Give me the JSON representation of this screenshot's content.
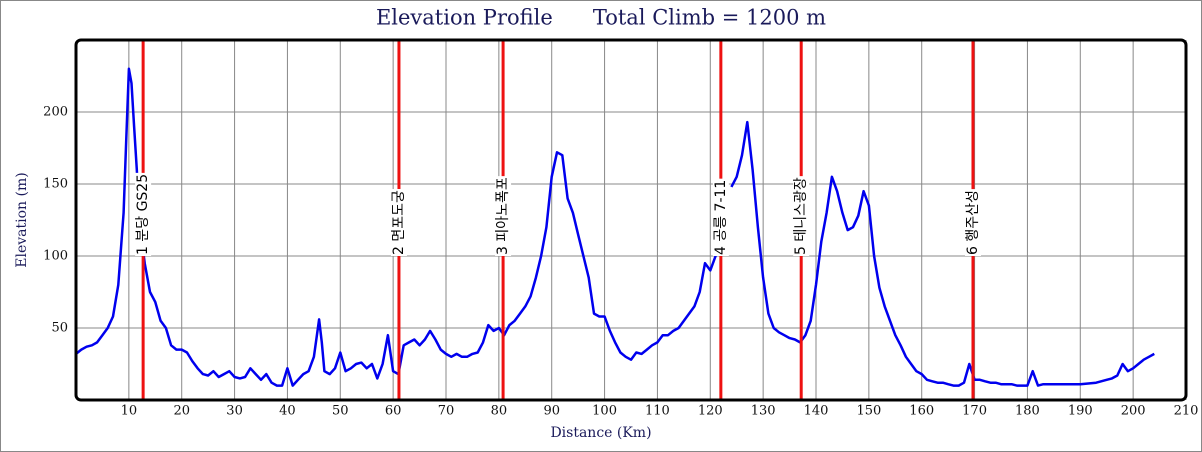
{
  "chart_data": {
    "type": "line",
    "title": "Elevation Profile      Total Climb = 1200 m",
    "x_label": "Distance (Km)",
    "y_label": "Elevation (m)",
    "xlim": [
      0,
      210
    ],
    "ylim": [
      0,
      250
    ],
    "xticks": [
      10,
      20,
      30,
      40,
      50,
      60,
      70,
      80,
      90,
      100,
      110,
      120,
      130,
      140,
      150,
      160,
      170,
      180,
      190,
      200,
      210
    ],
    "yticks": [
      50,
      100,
      150,
      200
    ],
    "grid": true,
    "x": [
      0,
      1,
      2,
      3,
      4,
      5,
      6,
      7,
      8,
      9,
      9.5,
      10,
      10.5,
      11,
      11.5,
      12,
      13,
      14,
      15,
      16,
      17,
      18,
      19,
      20,
      21,
      22,
      23,
      24,
      25,
      26,
      27,
      28,
      29,
      30,
      31,
      32,
      33,
      34,
      35,
      36,
      37,
      38,
      39,
      40,
      41,
      42,
      43,
      44,
      45,
      46,
      46.5,
      47,
      48,
      49,
      50,
      51,
      52,
      53,
      54,
      55,
      56,
      57,
      58,
      59,
      60,
      61,
      62,
      63,
      64,
      65,
      66,
      67,
      68,
      69,
      70,
      71,
      72,
      73,
      74,
      75,
      76,
      77,
      78,
      79,
      80,
      81,
      82,
      83,
      84,
      85,
      86,
      87,
      88,
      89,
      90,
      91,
      92,
      93,
      94,
      95,
      96,
      97,
      98,
      99,
      100,
      101,
      102,
      103,
      104,
      105,
      106,
      107,
      108,
      109,
      110,
      111,
      112,
      113,
      114,
      115,
      116,
      117,
      118,
      119,
      120,
      121,
      122,
      123,
      124,
      125,
      126,
      127,
      128,
      129,
      130,
      131,
      132,
      133,
      134,
      135,
      136,
      137,
      138,
      139,
      140,
      141,
      142,
      143,
      144,
      145,
      146,
      147,
      148,
      149,
      150,
      151,
      152,
      153,
      154,
      155,
      156,
      157,
      158,
      159,
      160,
      161,
      162,
      163,
      164,
      165,
      166,
      167,
      168,
      169,
      170,
      171,
      172,
      173,
      174,
      175,
      176,
      177,
      178,
      179,
      180,
      181,
      182,
      183,
      185,
      188,
      190,
      193,
      195,
      196,
      197,
      198,
      199,
      200,
      201,
      202,
      203,
      204
    ],
    "series": [
      {
        "name": "Elevation",
        "color": "#0000ee",
        "values": [
          32,
          35,
          37,
          38,
          40,
          45,
          50,
          58,
          80,
          130,
          180,
          230,
          220,
          190,
          160,
          125,
          95,
          75,
          68,
          55,
          50,
          38,
          35,
          35,
          33,
          27,
          22,
          18,
          17,
          20,
          16,
          18,
          20,
          16,
          15,
          16,
          22,
          18,
          14,
          18,
          12,
          10,
          10,
          22,
          10,
          14,
          18,
          20,
          30,
          56,
          40,
          20,
          18,
          22,
          33,
          20,
          22,
          25,
          26,
          22,
          25,
          15,
          25,
          45,
          20,
          18,
          38,
          40,
          42,
          38,
          42,
          48,
          42,
          35,
          32,
          30,
          32,
          30,
          30,
          32,
          33,
          40,
          52,
          48,
          50,
          45,
          52,
          55,
          60,
          65,
          72,
          85,
          100,
          120,
          155,
          172,
          170,
          140,
          130,
          115,
          100,
          85,
          60,
          58,
          58,
          48,
          40,
          33,
          30,
          28,
          33,
          32,
          35,
          38,
          40,
          45,
          45,
          48,
          50,
          55,
          60,
          65,
          75,
          95,
          90,
          100,
          105,
          null,
          148,
          155,
          170,
          193,
          160,
          120,
          85,
          60,
          50,
          47,
          45,
          43,
          42,
          40,
          45,
          55,
          80,
          110,
          130,
          155,
          145,
          130,
          118,
          120,
          128,
          145,
          135,
          100,
          78,
          65,
          55,
          45,
          38,
          30,
          25,
          20,
          18,
          14,
          13,
          12,
          12,
          11,
          10,
          10,
          12,
          25,
          14,
          14,
          13,
          12,
          12,
          11,
          11,
          11,
          10,
          10,
          10,
          20,
          10,
          11,
          11,
          11,
          11,
          12,
          14,
          15,
          17,
          25,
          20,
          22,
          25,
          28,
          30,
          32
        ]
      }
    ],
    "annotations": [
      {
        "x": 12.7,
        "label": "1 분당 GS25"
      },
      {
        "x": 61.1,
        "label": "2 면포도궁"
      },
      {
        "x": 80.8,
        "label": "3 피아노폭포"
      },
      {
        "x": 122,
        "label": "4 공릉 7-11"
      },
      {
        "x": 137.2,
        "label": "5 테니스광장"
      },
      {
        "x": 169.7,
        "label": "6 행주산성"
      }
    ],
    "annotation_color": "#ee1111"
  }
}
